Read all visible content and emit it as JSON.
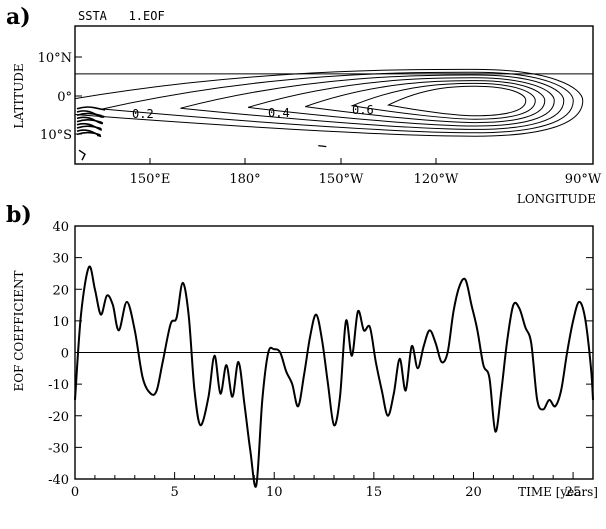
{
  "chart_data": [
    {
      "type": "contour",
      "panel_label": "a)",
      "title": "SSTA   1.EOF",
      "xlabel": "LONGITUDE",
      "ylabel": "LATITUDE",
      "x_ticks": [
        "150°E",
        "180°",
        "150°W",
        "120°W",
        "90°W"
      ],
      "y_ticks": [
        "10°N",
        "0°",
        "10°S"
      ],
      "xlim_deg_east": [
        138,
        270
      ],
      "ylim_deg": [
        -15,
        15
      ],
      "contour_labels": [
        "0.2",
        "0.4",
        "0.6"
      ],
      "contour_levels": [
        0.1,
        0.2,
        0.3,
        0.4,
        0.5,
        0.6,
        0.7
      ],
      "anomaly_center": {
        "lon_deg_east": 240,
        "lat_deg": -1
      }
    },
    {
      "type": "line",
      "panel_label": "b)",
      "xlabel": "TIME [years]",
      "ylabel": "EOF COEFFICIENT",
      "xlim": [
        0,
        26
      ],
      "ylim": [
        -40,
        40
      ],
      "x_ticks": [
        "0",
        "5",
        "10",
        "15",
        "20",
        "25"
      ],
      "y_ticks": [
        "40",
        "30",
        "20",
        "10",
        "0",
        "-10",
        "-20",
        "-30",
        "-40"
      ],
      "zero_line": true,
      "series": [
        {
          "x": [
            0,
            0.3,
            0.7,
            1.0,
            1.3,
            1.6,
            1.9,
            2.2,
            2.6,
            3.0,
            3.4,
            3.8,
            4.1,
            4.4,
            4.8,
            5.1,
            5.4,
            5.7,
            6.0,
            6.3,
            6.7,
            7.0,
            7.3,
            7.6,
            7.9,
            8.2,
            8.5,
            8.8,
            9.1,
            9.4,
            9.7,
            10.0,
            10.3,
            10.6,
            10.9,
            11.2,
            11.5,
            11.8,
            12.1,
            12.4,
            12.7,
            13.0,
            13.3,
            13.6,
            13.9,
            14.2,
            14.5,
            14.8,
            15.1,
            15.4,
            15.7,
            16.0,
            16.3,
            16.6,
            16.9,
            17.2,
            17.5,
            17.8,
            18.1,
            18.4,
            18.7,
            19.0,
            19.3,
            19.6,
            19.9,
            20.2,
            20.5,
            20.8,
            21.1,
            21.4,
            21.7,
            22.0,
            22.3,
            22.6,
            22.9,
            23.2,
            23.5,
            23.8,
            24.1,
            24.4,
            24.7,
            25.0,
            25.3,
            25.6,
            25.9,
            26.0
          ],
          "values": [
            -15,
            12,
            27,
            20,
            12,
            18,
            15,
            7,
            16,
            7,
            -8,
            -13,
            -12,
            -3,
            9,
            11,
            22,
            12,
            -12,
            -23,
            -14,
            -1,
            -13,
            -4,
            -14,
            -3,
            -16,
            -31,
            -42,
            -15,
            0,
            1,
            0,
            -6,
            -10,
            -17,
            -7,
            5,
            12,
            4,
            -10,
            -23,
            -14,
            10,
            -1,
            13,
            7,
            8,
            -3,
            -12,
            -20,
            -13,
            -2,
            -12,
            2,
            -5,
            2,
            7,
            3,
            -3,
            0,
            13,
            21,
            23,
            15,
            7,
            -4,
            -8,
            -25,
            -12,
            4,
            15,
            14,
            8,
            3,
            -15,
            -18,
            -15,
            -17,
            -12,
            0,
            10,
            16,
            11,
            -5,
            -15
          ]
        }
      ]
    }
  ]
}
